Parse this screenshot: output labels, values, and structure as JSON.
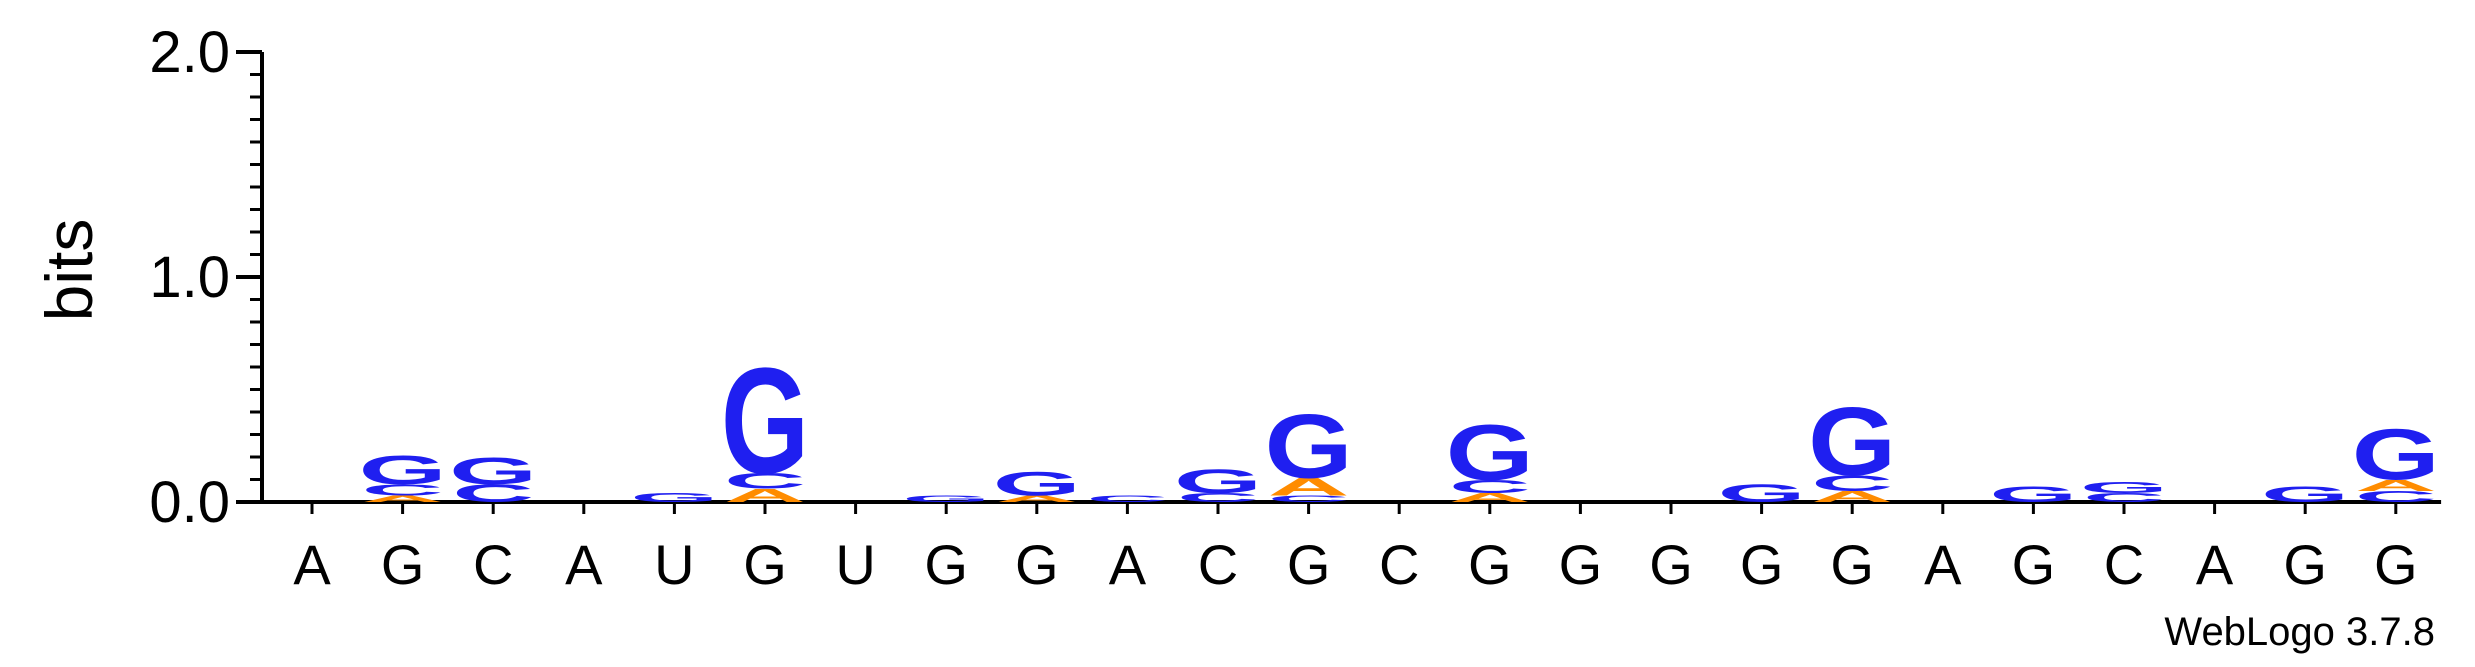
{
  "chart_data": {
    "type": "sequence-logo",
    "title": "",
    "xlabel": "",
    "ylabel": "bits",
    "ylim": [
      0,
      2
    ],
    "yticks": [
      "0.0",
      "1.0",
      "2.0"
    ],
    "colors": {
      "G": "#1f1ff0",
      "C": "#1f1ff0",
      "A": "#ff8c00",
      "U": "#c00000"
    },
    "positions": [
      {
        "label": "A",
        "stack": []
      },
      {
        "label": "G",
        "stack": [
          {
            "letter": "A",
            "bits": 0.03
          },
          {
            "letter": "C",
            "bits": 0.05
          },
          {
            "letter": "G",
            "bits": 0.13
          }
        ]
      },
      {
        "label": "C",
        "stack": [
          {
            "letter": "C",
            "bits": 0.08
          },
          {
            "letter": "G",
            "bits": 0.12
          }
        ]
      },
      {
        "label": "A",
        "stack": []
      },
      {
        "label": "U",
        "stack": [
          {
            "letter": "G",
            "bits": 0.04
          }
        ]
      },
      {
        "label": "G",
        "stack": [
          {
            "letter": "A",
            "bits": 0.06
          },
          {
            "letter": "C",
            "bits": 0.07
          },
          {
            "letter": "G",
            "bits": 0.48
          }
        ]
      },
      {
        "label": "U",
        "stack": []
      },
      {
        "label": "G",
        "stack": [
          {
            "letter": "G",
            "bits": 0.03
          }
        ]
      },
      {
        "label": "G",
        "stack": [
          {
            "letter": "A",
            "bits": 0.03
          },
          {
            "letter": "G",
            "bits": 0.11
          }
        ]
      },
      {
        "label": "A",
        "stack": [
          {
            "letter": "C",
            "bits": 0.03
          }
        ]
      },
      {
        "label": "C",
        "stack": [
          {
            "letter": "C",
            "bits": 0.04
          },
          {
            "letter": "G",
            "bits": 0.11
          }
        ]
      },
      {
        "label": "G",
        "stack": [
          {
            "letter": "C",
            "bits": 0.03
          },
          {
            "letter": "A",
            "bits": 0.08
          },
          {
            "letter": "G",
            "bits": 0.29
          }
        ]
      },
      {
        "label": "C",
        "stack": []
      },
      {
        "label": "G",
        "stack": [
          {
            "letter": "A",
            "bits": 0.04
          },
          {
            "letter": "C",
            "bits": 0.06
          },
          {
            "letter": "G",
            "bits": 0.25
          }
        ]
      },
      {
        "label": "G",
        "stack": []
      },
      {
        "label": "G",
        "stack": []
      },
      {
        "label": "G",
        "stack": [
          {
            "letter": "G",
            "bits": 0.08
          }
        ]
      },
      {
        "label": "G",
        "stack": [
          {
            "letter": "A",
            "bits": 0.05
          },
          {
            "letter": "C",
            "bits": 0.07
          },
          {
            "letter": "G",
            "bits": 0.31
          }
        ]
      },
      {
        "label": "A",
        "stack": []
      },
      {
        "label": "G",
        "stack": [
          {
            "letter": "G",
            "bits": 0.07
          }
        ]
      },
      {
        "label": "C",
        "stack": [
          {
            "letter": "C",
            "bits": 0.04
          },
          {
            "letter": "G",
            "bits": 0.05
          }
        ]
      },
      {
        "label": "A",
        "stack": []
      },
      {
        "label": "G",
        "stack": [
          {
            "letter": "G",
            "bits": 0.07
          }
        ]
      },
      {
        "label": "G",
        "stack": [
          {
            "letter": "C",
            "bits": 0.05
          },
          {
            "letter": "A",
            "bits": 0.05
          },
          {
            "letter": "G",
            "bits": 0.23
          }
        ]
      }
    ]
  },
  "footer": {
    "credit": "WebLogo 3.7.8"
  }
}
